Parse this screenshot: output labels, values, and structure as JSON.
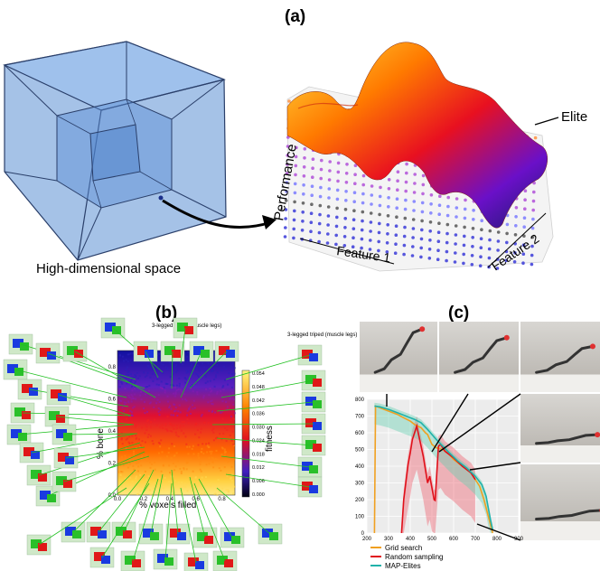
{
  "panel_a": {
    "label": "(a)",
    "caption_space": "High-dimensional space",
    "axis_performance": "Performance",
    "axis_feature1": "Feature 1",
    "axis_feature2": "Feature 2",
    "elite_label": "Elite"
  },
  "panel_b": {
    "label": "(b)",
    "xlabel": "% voxels filled",
    "ylabel": "% bone",
    "colorbar_label": "fitness",
    "colorbar_ticks": [
      "0.054",
      "0.048",
      "0.042",
      "0.036",
      "0.030",
      "0.024",
      "0.018",
      "0.012",
      "0.006",
      "0.000"
    ],
    "x_ticks": [
      "0.0",
      "0.2",
      "0.4",
      "0.6",
      "0.8"
    ],
    "y_ticks": [
      "0.0",
      "0.2",
      "0.4",
      "0.6",
      "0.8"
    ],
    "annotation_top": "3-legged triped (muscle legs)",
    "annotation_right": "3-legged triped (muscle legs)"
  },
  "panel_c": {
    "label": "(c)",
    "chart_data": {
      "type": "line",
      "xlim": [
        200,
        900
      ],
      "ylim": [
        0,
        800
      ],
      "x_ticks": [
        "200",
        "300",
        "400",
        "500",
        "600",
        "700",
        "800",
        "900"
      ],
      "y_ticks": [
        "0",
        "100",
        "200",
        "300",
        "400",
        "500",
        "600",
        "700",
        "800"
      ],
      "grid": true,
      "legend_position": "bottom",
      "series": [
        {
          "name": "Grid search",
          "color": "#f0a020",
          "points": [
            [
              235,
              0
            ],
            [
              240,
              760
            ],
            [
              270,
              745
            ],
            [
              300,
              730
            ],
            [
              340,
              710
            ],
            [
              370,
              690
            ],
            [
              400,
              670
            ],
            [
              420,
              650
            ],
            [
              450,
              630
            ],
            [
              470,
              600
            ],
            [
              480,
              590
            ],
            [
              490,
              560
            ],
            [
              500,
              530
            ],
            [
              510,
              520
            ],
            [
              520,
              510
            ],
            [
              550,
              500
            ],
            [
              580,
              470
            ],
            [
              600,
              440
            ],
            [
              640,
              400
            ],
            [
              680,
              360
            ],
            [
              700,
              320
            ],
            [
              720,
              280
            ],
            [
              740,
              200
            ],
            [
              760,
              100
            ],
            [
              780,
              0
            ]
          ]
        },
        {
          "name": "Random sampling",
          "color": "#e0101a",
          "points": [
            [
              360,
              0
            ],
            [
              370,
              200
            ],
            [
              390,
              410
            ],
            [
              400,
              480
            ],
            [
              410,
              560
            ],
            [
              420,
              600
            ],
            [
              430,
              640
            ],
            [
              440,
              580
            ],
            [
              450,
              520
            ],
            [
              460,
              460
            ],
            [
              470,
              380
            ],
            [
              480,
              300
            ],
            [
              490,
              340
            ],
            [
              500,
              270
            ],
            [
              510,
              200
            ],
            [
              515,
              195
            ],
            [
              530,
              520
            ],
            [
              540,
              530
            ],
            [
              560,
              490
            ],
            [
              600,
              450
            ],
            [
              640,
              400
            ],
            [
              680,
              360
            ],
            [
              700,
              320
            ]
          ]
        },
        {
          "name": "MAP-Elites",
          "color": "#20b2aa",
          "points": [
            [
              235,
              760
            ],
            [
              260,
              755
            ],
            [
              300,
              740
            ],
            [
              340,
              720
            ],
            [
              380,
              700
            ],
            [
              420,
              680
            ],
            [
              450,
              660
            ],
            [
              480,
              620
            ],
            [
              500,
              590
            ],
            [
              520,
              560
            ],
            [
              550,
              520
            ],
            [
              580,
              480
            ],
            [
              620,
              430
            ],
            [
              660,
              390
            ],
            [
              700,
              340
            ],
            [
              730,
              290
            ],
            [
              750,
              220
            ],
            [
              760,
              150
            ],
            [
              770,
              80
            ],
            [
              780,
              20
            ]
          ]
        }
      ]
    }
  },
  "colors": {
    "cube_fill": "#5b8fd4",
    "cube_edge": "#2a3f6a",
    "figure_bg": "#ffffff"
  }
}
